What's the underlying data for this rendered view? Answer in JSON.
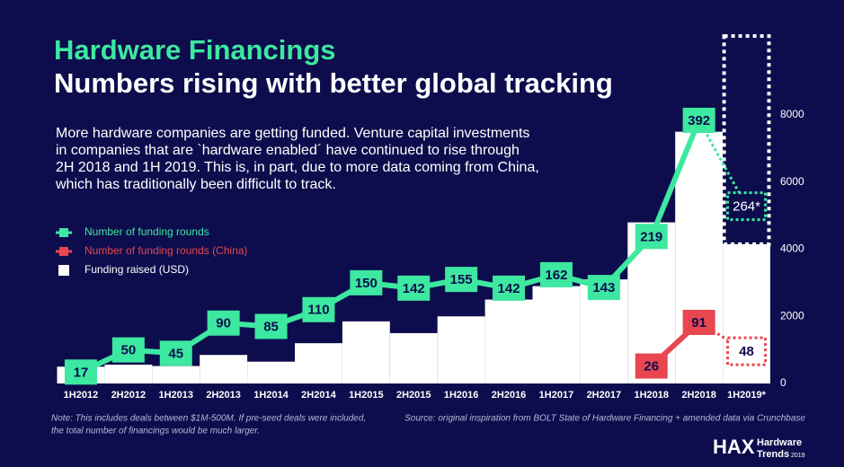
{
  "chart_data": {
    "type": "bar-line",
    "title": "Hardware Financings",
    "subtitle": "Numbers rising with better global tracking",
    "description": [
      "More hardware companies are getting funded. Venture capital investments",
      "in companies that are `hardware enabled´ have continued to rise through",
      "2H 2018 and 1H 2019. This is, in part, due to more data coming from China,",
      "which has traditionally been difficult to track."
    ],
    "categories": [
      "1H2012",
      "2H2012",
      "1H2013",
      "2H2013",
      "1H2014",
      "2H2014",
      "1H2015",
      "2H2015",
      "1H2016",
      "2H2016",
      "1H2017",
      "2H2017",
      "1H2018",
      "2H2018",
      "1H2019*"
    ],
    "ylim": [
      0,
      400
    ],
    "y2lim": [
      0,
      8000
    ],
    "y2ticks": [
      0,
      2000,
      4000,
      6000,
      8000
    ],
    "series": [
      {
        "name": "Number of funding rounds",
        "color": "#3de8a0",
        "type": "line",
        "values": [
          17,
          50,
          45,
          90,
          85,
          110,
          150,
          142,
          155,
          142,
          162,
          143,
          219,
          392,
          null
        ],
        "projected_values": [
          null,
          null,
          null,
          null,
          null,
          null,
          null,
          null,
          null,
          null,
          null,
          null,
          null,
          null,
          264
        ],
        "projected_value_labels": [
          null,
          null,
          null,
          null,
          null,
          null,
          null,
          null,
          null,
          null,
          null,
          null,
          null,
          null,
          "264*"
        ]
      },
      {
        "name": "Number of funding rounds (China)",
        "color": "#e8474f",
        "type": "line",
        "values": [
          null,
          null,
          null,
          null,
          null,
          null,
          null,
          null,
          null,
          null,
          null,
          null,
          26,
          91,
          null
        ],
        "projected_values": [
          null,
          null,
          null,
          null,
          null,
          null,
          null,
          null,
          null,
          null,
          null,
          null,
          null,
          null,
          48
        ]
      },
      {
        "name": "Funding raised (USD)",
        "color": "#ffffff",
        "type": "bar",
        "axis": "y2",
        "values": [
          500,
          560,
          520,
          850,
          650,
          1200,
          1850,
          1500,
          2000,
          2500,
          2900,
          3100,
          4800,
          7500,
          4150
        ],
        "projected_values": [
          null,
          null,
          null,
          null,
          null,
          null,
          null,
          null,
          null,
          null,
          null,
          null,
          null,
          null,
          10350
        ]
      }
    ],
    "note": [
      "Note: This includes deals between $1M-500M. If pre-seed deals were included,",
      "the total number of financings would be much larger."
    ],
    "source": "Source: original inspiration from BOLT State of Hardware Financing + amended data via Crunchbase",
    "logo": {
      "mark": "HAX",
      "line1": "Hardware",
      "line2": "Trends",
      "year": "2019"
    }
  }
}
